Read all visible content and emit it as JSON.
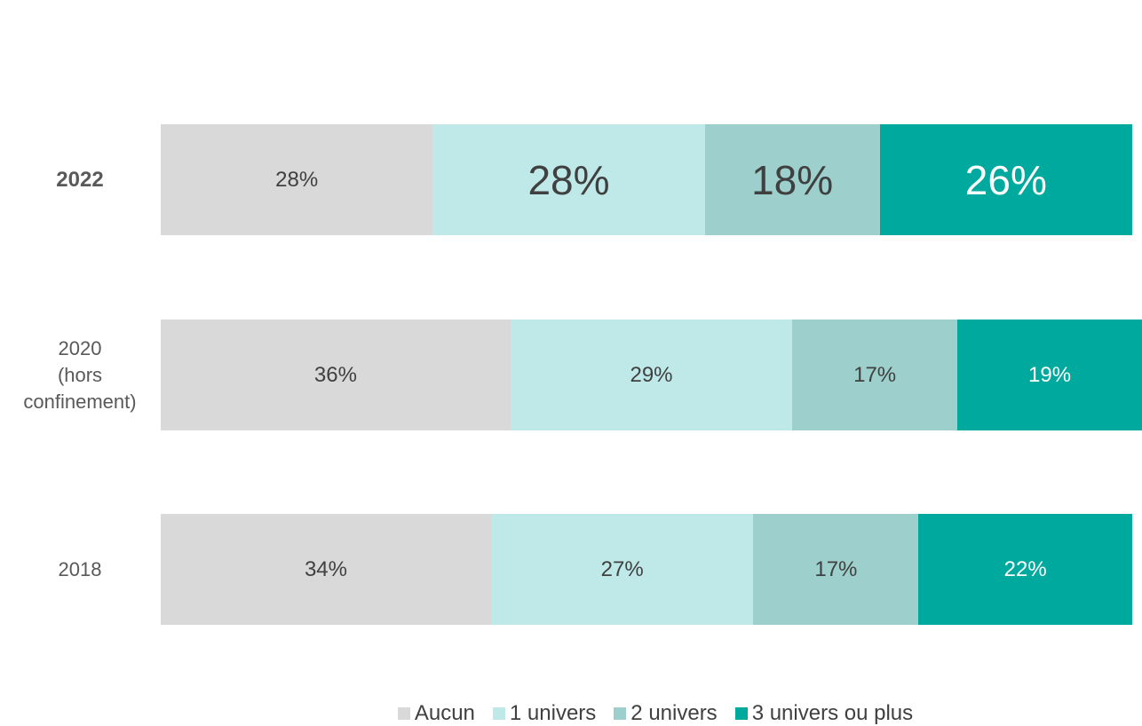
{
  "chart_data": {
    "type": "stacked-bar-horizontal",
    "categories": [
      "2022",
      "2020\n(hors\nconfinement)",
      "2018"
    ],
    "series": [
      {
        "name": "Aucun",
        "color": "#d9d9d9",
        "values": [
          28,
          36,
          34
        ],
        "value_labels": [
          "28%",
          "36%",
          "34%"
        ],
        "label_color": "#404040"
      },
      {
        "name": "1 univers",
        "color": "#bfe9e8",
        "values": [
          28,
          29,
          27
        ],
        "value_labels": [
          "28%",
          "29%",
          "27%"
        ],
        "label_color": "#404040"
      },
      {
        "name": "2 univers",
        "color": "#9dd0cc",
        "values": [
          18,
          17,
          17
        ],
        "value_labels": [
          "18%",
          "17%",
          "17%"
        ],
        "label_color": "#404040"
      },
      {
        "name": "3 univers ou plus",
        "color": "#00a99d",
        "values": [
          26,
          19,
          22
        ],
        "value_labels": [
          "26%",
          "19%",
          "22%"
        ],
        "label_color": "#ffffff"
      }
    ]
  }
}
